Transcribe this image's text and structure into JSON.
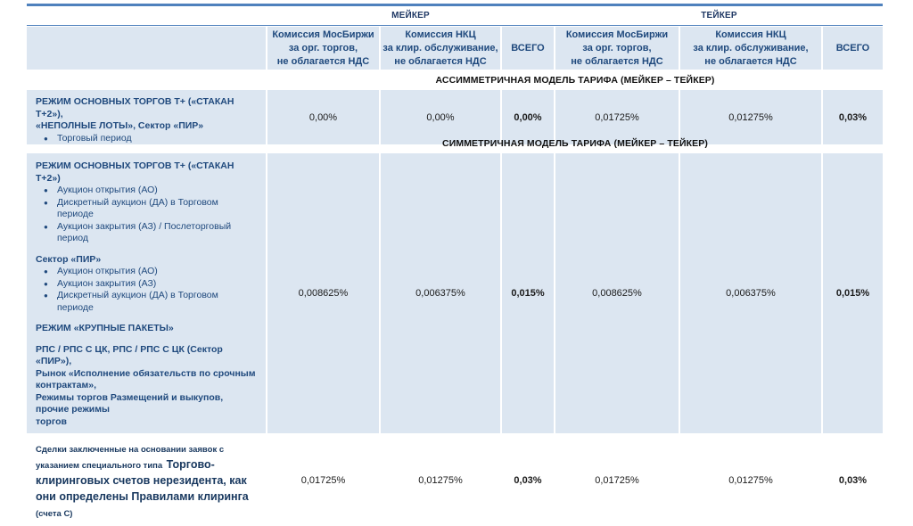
{
  "colors": {
    "accent_line": "#4f81bd",
    "cell_background": "#dce6f1",
    "label_text": "#1f497d"
  },
  "table": {
    "group_headers": {
      "maker": "МЕЙКЕР",
      "taker": "ТЕЙКЕР"
    },
    "column_headers": {
      "moex_fee": "Комиссия МосБиржи\nза орг. торгов,\nне облагается НДС",
      "nkc_fee": "Комиссия НКЦ\nза клир. обслуживание,\nне облагается НДС",
      "total": "ВСЕГО"
    },
    "section_asymmetric": "АССИММЕТРИЧНАЯ МОДЕЛЬ ТАРИФА (МЕЙКЕР – ТЕЙКЕР)",
    "section_symmetric": "СИММЕТРИЧНАЯ МОДЕЛЬ ТАРИФА (МЕЙКЕР – ТЕЙКЕР)",
    "row_asymmetric": {
      "title": "РЕЖИМ ОСНОВНЫХ ТОРГОВ Т+ («СТАКАН Т+2»),\n«НЕПОЛНЫЕ ЛОТЫ», Сектор «ПИР»",
      "bullets": [
        "Торговый период"
      ],
      "values": [
        "0,00%",
        "0,00%",
        "0,00%",
        "0,01725%",
        "0,01275%",
        "0,03%"
      ]
    },
    "row_symmetric": {
      "heading1": "РЕЖИМ ОСНОВНЫХ ТОРГОВ Т+ («СТАКАН Т+2»)",
      "bullets1": [
        "Аукцион открытия (АО)",
        "Дискретный аукцион (ДА) в Торговом периоде",
        "Аукцион закрытия (АЗ) / Послеторговый период"
      ],
      "heading2": "Сектор «ПИР»",
      "bullets2": [
        "Аукцион открытия (АО)",
        "Аукцион закрытия (АЗ)",
        "Дискретный аукцион (ДА) в Торговом периоде"
      ],
      "heading3": "РЕЖИМ «КРУПНЫЕ ПАКЕТЫ»",
      "heading4": "РПС / РПС С ЦК, РПС / РПС С ЦК (Сектор «ПИР»),\nРынок «Исполнение обязательств по срочным контрактам»,\nРежимы торгов Размещений и выкупов, прочие режимы\nторгов",
      "values": [
        "0,008625%",
        "0,006375%",
        "0,015%",
        "0,008625%",
        "0,006375%",
        "0,015%"
      ]
    },
    "row_accounts_c": {
      "intro": "Сделки заключенные на основании заявок с указанием специального типа",
      "emphasis": "Торгово-клиринговых счетов нерезидента, как они определены Правилами клиринга",
      "suffix": "(счета С)",
      "values": [
        "0,01725%",
        "0,01275%",
        "0,03%",
        "0,01725%",
        "0,01275%",
        "0,03%"
      ]
    }
  }
}
